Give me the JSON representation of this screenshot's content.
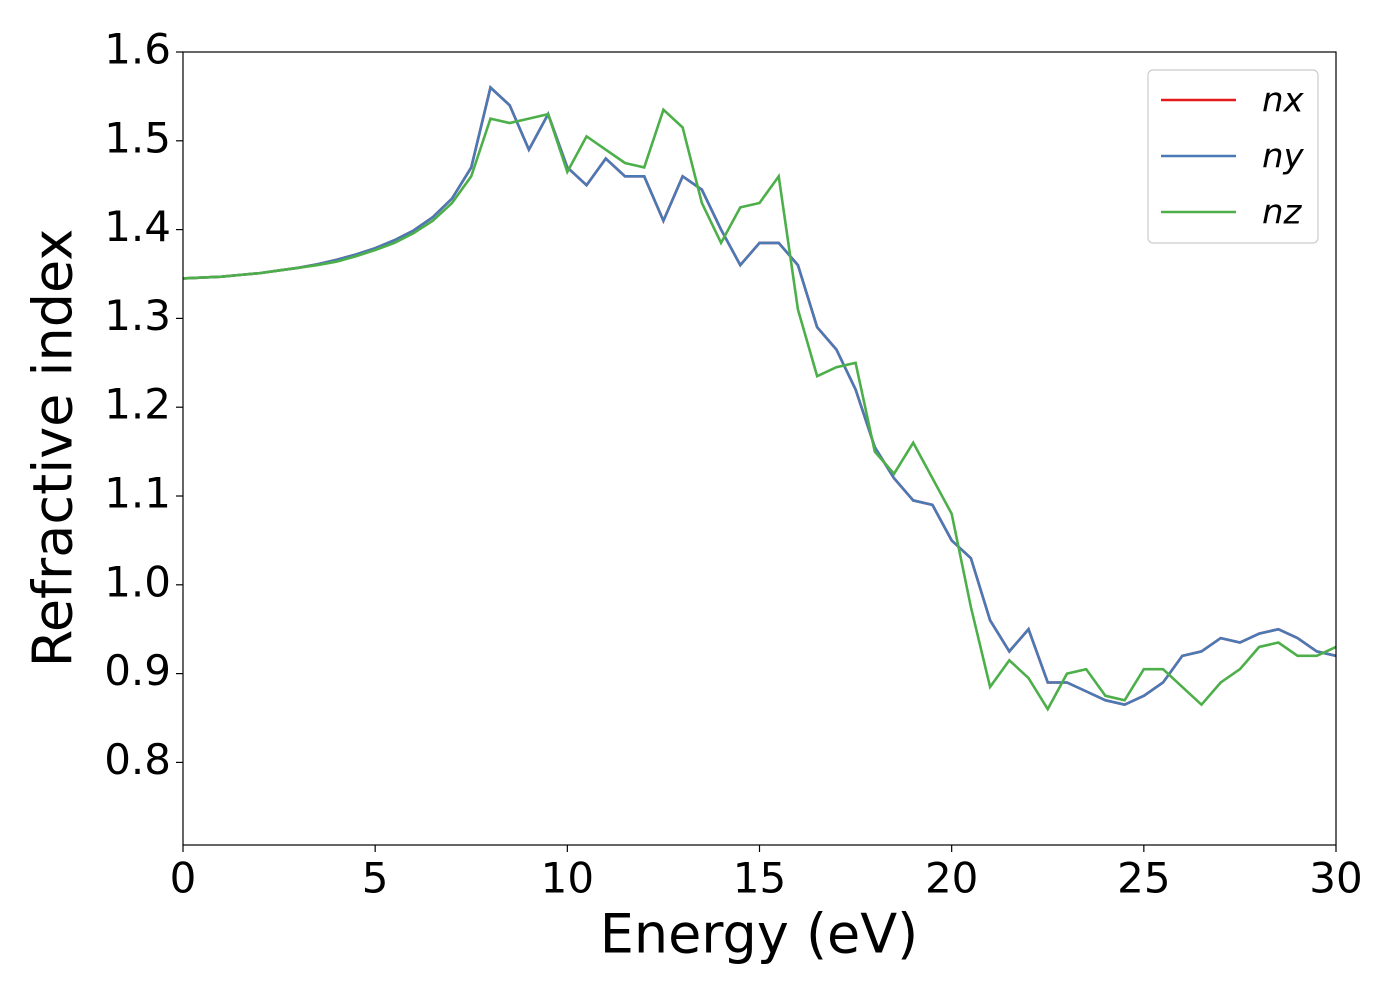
{
  "chart_data": {
    "type": "line",
    "xlabel": "Energy (eV)",
    "ylabel": "Refractive index",
    "x": [
      0,
      0.5,
      1,
      1.5,
      2,
      2.5,
      3,
      3.5,
      4,
      4.5,
      5,
      5.5,
      6,
      6.5,
      7,
      7.5,
      8,
      8.5,
      9,
      9.5,
      10,
      10.5,
      11,
      11.5,
      12,
      12.5,
      13,
      13.5,
      14,
      14.5,
      15,
      15.5,
      16,
      16.5,
      17,
      17.5,
      18,
      18.5,
      19,
      19.5,
      20,
      20.5,
      21,
      21.5,
      22,
      22.5,
      23,
      23.5,
      24,
      24.5,
      25,
      25.5,
      26,
      26.5,
      27,
      27.5,
      28,
      28.5,
      29,
      29.5,
      30
    ],
    "series": [
      {
        "name": "nx",
        "color": "#e41a1c",
        "values": [
          1.345,
          1.346,
          1.347,
          1.349,
          1.351,
          1.354,
          1.357,
          1.361,
          1.366,
          1.372,
          1.379,
          1.388,
          1.399,
          1.414,
          1.435,
          1.47,
          1.56,
          1.54,
          1.49,
          1.53,
          1.47,
          1.45,
          1.48,
          1.46,
          1.46,
          1.41,
          1.46,
          1.445,
          1.4,
          1.36,
          1.385,
          1.385,
          1.36,
          1.29,
          1.265,
          1.22,
          1.155,
          1.12,
          1.095,
          1.09,
          1.05,
          1.03,
          0.96,
          0.925,
          0.95,
          0.89,
          0.89,
          0.88,
          0.87,
          0.865,
          0.875,
          0.89,
          0.92,
          0.925,
          0.94,
          0.935,
          0.945,
          0.95,
          0.94,
          0.925,
          0.92
        ]
      },
      {
        "name": "ny",
        "color": "#4a7ab5",
        "values": [
          1.345,
          1.346,
          1.347,
          1.349,
          1.351,
          1.354,
          1.357,
          1.361,
          1.366,
          1.372,
          1.379,
          1.388,
          1.399,
          1.414,
          1.435,
          1.47,
          1.56,
          1.54,
          1.49,
          1.53,
          1.47,
          1.45,
          1.48,
          1.46,
          1.46,
          1.41,
          1.46,
          1.445,
          1.4,
          1.36,
          1.385,
          1.385,
          1.36,
          1.29,
          1.265,
          1.22,
          1.155,
          1.12,
          1.095,
          1.09,
          1.05,
          1.03,
          0.96,
          0.925,
          0.95,
          0.89,
          0.89,
          0.88,
          0.87,
          0.865,
          0.875,
          0.89,
          0.92,
          0.925,
          0.94,
          0.935,
          0.945,
          0.95,
          0.94,
          0.925,
          0.92
        ]
      },
      {
        "name": "nz",
        "color": "#4daf4a",
        "values": [
          1.345,
          1.346,
          1.347,
          1.349,
          1.351,
          1.354,
          1.357,
          1.36,
          1.364,
          1.37,
          1.377,
          1.385,
          1.396,
          1.41,
          1.43,
          1.46,
          1.525,
          1.52,
          1.525,
          1.53,
          1.465,
          1.505,
          1.49,
          1.475,
          1.47,
          1.535,
          1.515,
          1.43,
          1.385,
          1.425,
          1.43,
          1.46,
          1.31,
          1.235,
          1.245,
          1.25,
          1.15,
          1.125,
          1.16,
          1.12,
          1.08,
          0.975,
          0.885,
          0.915,
          0.895,
          0.86,
          0.9,
          0.905,
          0.875,
          0.87,
          0.905,
          0.905,
          0.885,
          0.865,
          0.89,
          0.905,
          0.93,
          0.935,
          0.92,
          0.92,
          0.93
        ]
      }
    ],
    "xlim": [
      0,
      30
    ],
    "xticks": [
      0,
      5,
      10,
      15,
      20,
      25,
      30
    ],
    "ylim": [
      0.707,
      1.6
    ],
    "yticks": [
      0.8,
      0.9,
      {
        "value": 1,
        "label": "1.0"
      },
      1.1,
      1.2,
      1.3,
      1.4,
      1.5,
      1.6
    ],
    "legend": "upper right"
  }
}
